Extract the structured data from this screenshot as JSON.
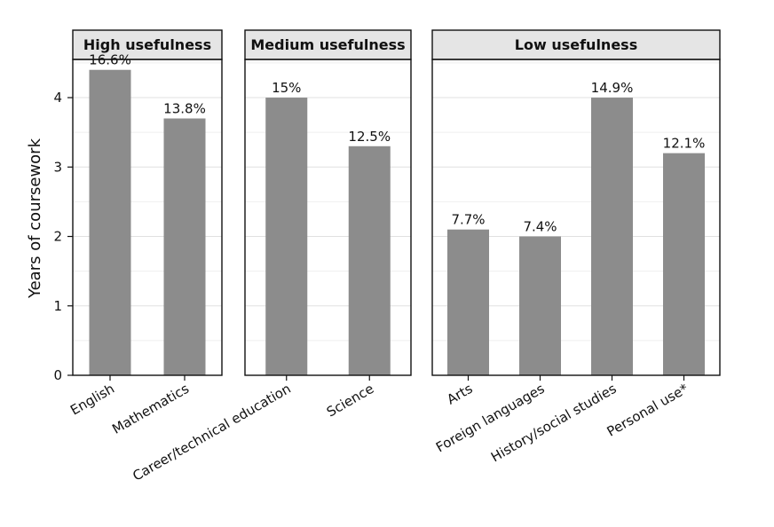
{
  "chart_data": {
    "type": "bar",
    "ylabel": "Years of coursework",
    "xlabel": "",
    "ylim": [
      0,
      4.55
    ],
    "yticks": [
      0,
      1,
      2,
      3,
      4
    ],
    "grid": true,
    "bar_color": "#8c8c8c",
    "strip_color": "#e5e5e5",
    "panels": [
      {
        "title": "High usefulness",
        "categories": [
          "English",
          "Mathematics"
        ],
        "values": [
          4.4,
          3.7
        ],
        "labels": [
          "16.6%",
          "13.8%"
        ]
      },
      {
        "title": "Medium usefulness",
        "categories": [
          "Career/technical education",
          "Science"
        ],
        "values": [
          4.0,
          3.3
        ],
        "labels": [
          "15%",
          "12.5%"
        ]
      },
      {
        "title": "Low usefulness",
        "categories": [
          "Arts",
          "Foreign languages",
          "History/social studies",
          "Personal use*"
        ],
        "values": [
          2.1,
          2.0,
          4.0,
          3.2
        ],
        "labels": [
          "7.7%",
          "7.4%",
          "14.9%",
          "12.1%"
        ]
      }
    ]
  }
}
